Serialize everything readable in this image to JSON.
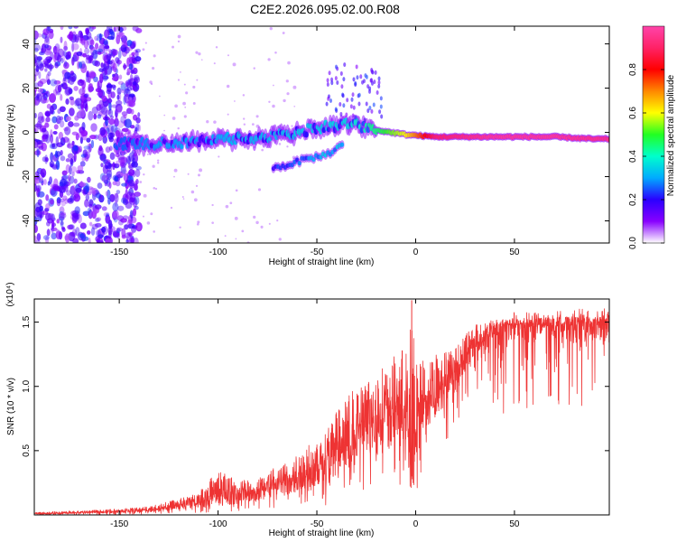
{
  "title": "C2E2.2026.095.02.00.R08",
  "chart_data": [
    {
      "type": "heatmap",
      "xlabel": "Height of straight line (km)",
      "ylabel": "Frequency (Hz)",
      "xlim": [
        -193,
        98
      ],
      "ylim": [
        -50,
        48
      ],
      "xticks": [
        -150,
        -100,
        -50,
        0,
        50
      ],
      "yticks": [
        -40,
        -20,
        0,
        20,
        40
      ],
      "colorbar": {
        "label": "Normalized spectral amplitude",
        "range": [
          0,
          1
        ],
        "ticks": [
          "0.0",
          "0.2",
          "0.4",
          "0.6",
          "0.8"
        ],
        "colors": [
          "#ffffff",
          "#8800ff",
          "#2a00ff",
          "#00aaff",
          "#00ffcc",
          "#22ff22",
          "#ffff00",
          "#ff8800",
          "#ff0000",
          "#ff2266",
          "#ff44aa"
        ]
      },
      "main_band": [
        {
          "x": -150,
          "y": -5,
          "amplitude": 0.25
        },
        {
          "x": -130,
          "y": -5,
          "amplitude": 0.3
        },
        {
          "x": -110,
          "y": -4,
          "amplitude": 0.3
        },
        {
          "x": -90,
          "y": -3,
          "amplitude": 0.32
        },
        {
          "x": -70,
          "y": -2,
          "amplitude": 0.33
        },
        {
          "x": -50,
          "y": 2,
          "amplitude": 0.35
        },
        {
          "x": -35,
          "y": 4,
          "amplitude": 0.36
        },
        {
          "x": -20,
          "y": 1,
          "amplitude": 0.45
        },
        {
          "x": -5,
          "y": -1,
          "amplitude": 0.6
        },
        {
          "x": 10,
          "y": -2,
          "amplitude": 0.9
        },
        {
          "x": 40,
          "y": -2,
          "amplitude": 0.97
        },
        {
          "x": 70,
          "y": -2,
          "amplitude": 0.97
        },
        {
          "x": 90,
          "y": -3,
          "amplitude": 0.95
        }
      ],
      "secondary_band": [
        {
          "x": -70,
          "y": -16,
          "amplitude": 0.2
        },
        {
          "x": -55,
          "y": -12,
          "amplitude": 0.25
        },
        {
          "x": -45,
          "y": -10,
          "amplitude": 0.3
        },
        {
          "x": -38,
          "y": -6,
          "amplitude": 0.3
        }
      ]
    },
    {
      "type": "line",
      "xlabel": "Height of straight line (km)",
      "ylabel": "SNR (10 * v/v)",
      "scale_label": "(x10⁴)",
      "xlim": [
        -193,
        98
      ],
      "ylim": [
        0,
        1.68
      ],
      "xticks": [
        -150,
        -100,
        -50,
        0,
        50
      ],
      "yticks": [
        0.5,
        1.0,
        1.5
      ],
      "color": "#ee3333",
      "series": [
        {
          "x": [
            -193,
            -180,
            -160,
            -140,
            -130,
            -120,
            -110,
            -100,
            -90,
            -80,
            -70,
            -60,
            -50,
            -40,
            -30,
            -20,
            -10,
            -5,
            -2,
            0,
            5,
            10,
            20,
            25,
            30,
            35,
            40,
            50,
            60,
            70,
            80,
            90,
            98
          ],
          "y": [
            0.01,
            0.01,
            0.02,
            0.03,
            0.04,
            0.06,
            0.09,
            0.13,
            0.13,
            0.16,
            0.2,
            0.25,
            0.32,
            0.45,
            0.55,
            0.68,
            0.75,
            0.7,
            0.3,
            0.6,
            0.8,
            0.9,
            1.05,
            1.2,
            1.3,
            1.35,
            1.4,
            1.45,
            1.46,
            1.46,
            1.47,
            1.47,
            1.47
          ],
          "envelope_max": [
            0.02,
            0.03,
            0.04,
            0.06,
            0.09,
            0.13,
            0.18,
            0.38,
            0.28,
            0.3,
            0.4,
            0.5,
            0.62,
            0.85,
            1.05,
            1.15,
            1.3,
            1.4,
            1.67,
            1.35,
            1.25,
            1.3,
            1.35,
            1.45,
            1.5,
            1.52,
            1.53,
            1.54,
            1.54,
            1.55,
            1.55,
            1.56,
            1.56
          ],
          "envelope_min": [
            0.0,
            0.0,
            0.0,
            0.0,
            0.0,
            0.01,
            0.01,
            0.02,
            0.03,
            0.04,
            0.05,
            0.06,
            0.06,
            0.08,
            0.1,
            0.12,
            0.15,
            0.15,
            0.15,
            0.15,
            0.4,
            0.5,
            0.65,
            0.85,
            0.95,
            1.0,
            0.75,
            0.8,
            0.85,
            0.85,
            0.8,
            0.75,
            0.7
          ]
        }
      ]
    }
  ]
}
